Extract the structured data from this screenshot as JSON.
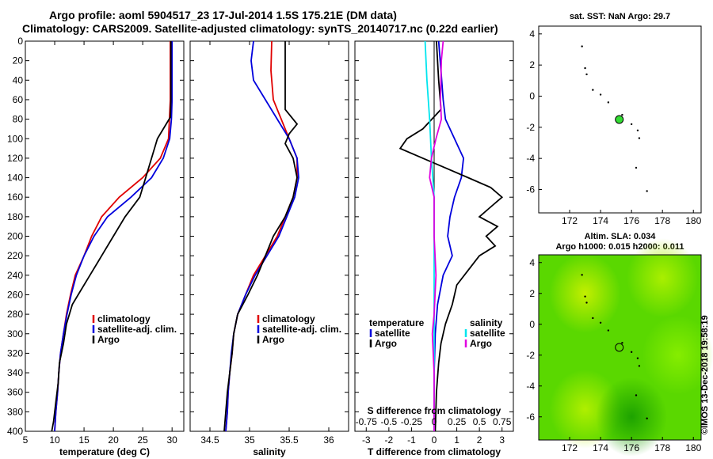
{
  "title_line1": "Argo profile: aoml 5904517_23 17-Jul-2014 1.5S 175.21E (DM data)",
  "title_line2": "Climatology: CARS2009. Satellite-adjusted climatology: synTS_20140717.nc (0.22d earlier)",
  "colors": {
    "red": "#e00000",
    "blue": "#0000dd",
    "black": "#000000",
    "cyan": "#00e5ee",
    "magenta": "#e000e0",
    "green_marker": "#33dd33"
  },
  "chart_data": [
    {
      "type": "line",
      "id": "temperature",
      "xlabel": "temperature (deg C)",
      "ylabel": "",
      "xlim": [
        5,
        32
      ],
      "ylim": [
        400,
        0
      ],
      "xticks": [
        5,
        10,
        15,
        20,
        25,
        30
      ],
      "yticks": [
        0,
        20,
        40,
        60,
        80,
        100,
        120,
        140,
        160,
        180,
        200,
        220,
        240,
        260,
        280,
        300,
        320,
        340,
        360,
        380,
        400
      ],
      "legend": [
        "climatology",
        "satellite-adj. clim.",
        "Argo"
      ],
      "series": [
        {
          "name": "climatology",
          "color": "red",
          "points": [
            [
              29.7,
              0
            ],
            [
              29.7,
              60
            ],
            [
              29.4,
              100
            ],
            [
              28,
              120
            ],
            [
              25,
              140
            ],
            [
              21,
              160
            ],
            [
              18,
              180
            ],
            [
              16.3,
              200
            ],
            [
              15,
              220
            ],
            [
              13.5,
              240
            ],
            [
              12.7,
              260
            ],
            [
              12,
              280
            ],
            [
              11.5,
              300
            ],
            [
              11,
              320
            ],
            [
              10.7,
              340
            ],
            [
              10.5,
              360
            ],
            [
              10.2,
              380
            ],
            [
              10,
              400
            ]
          ]
        },
        {
          "name": "satellite-adj. clim.",
          "color": "blue",
          "points": [
            [
              30,
              0
            ],
            [
              30,
              60
            ],
            [
              29.9,
              80
            ],
            [
              29.6,
              100
            ],
            [
              28.5,
              120
            ],
            [
              26.5,
              140
            ],
            [
              23,
              160
            ],
            [
              19,
              180
            ],
            [
              16.7,
              200
            ],
            [
              15,
              220
            ],
            [
              13.7,
              240
            ],
            [
              12.8,
              260
            ],
            [
              12.1,
              280
            ],
            [
              11.5,
              300
            ],
            [
              11,
              320
            ],
            [
              10.7,
              340
            ],
            [
              10.5,
              360
            ],
            [
              10.2,
              380
            ],
            [
              10,
              400
            ]
          ]
        },
        {
          "name": "Argo",
          "color": "black",
          "points": [
            [
              29.8,
              0
            ],
            [
              29.8,
              60
            ],
            [
              29.7,
              78
            ],
            [
              28.5,
              90
            ],
            [
              27.5,
              100
            ],
            [
              26.5,
              120
            ],
            [
              25.5,
              140
            ],
            [
              24.5,
              160
            ],
            [
              22,
              180
            ],
            [
              20,
              200
            ],
            [
              18,
              220
            ],
            [
              16,
              240
            ],
            [
              14,
              260
            ],
            [
              13,
              270
            ],
            [
              12,
              290
            ],
            [
              11.5,
              310
            ],
            [
              10.8,
              330
            ],
            [
              10.6,
              350
            ],
            [
              10.2,
              370
            ],
            [
              9.8,
              390
            ],
            [
              9.5,
              400
            ]
          ]
        }
      ]
    },
    {
      "type": "line",
      "id": "salinity",
      "xlabel": "salinity",
      "ylabel": "",
      "xlim": [
        34.25,
        36.25
      ],
      "ylim": [
        400,
        0
      ],
      "xticks": [
        34.5,
        35,
        35.5,
        36
      ],
      "legend": [
        "climatology",
        "satellite-adj. clim.",
        "Argo"
      ],
      "series": [
        {
          "name": "climatology",
          "color": "red",
          "points": [
            [
              35.28,
              0
            ],
            [
              35.27,
              30
            ],
            [
              35.3,
              60
            ],
            [
              35.4,
              80
            ],
            [
              35.5,
              100
            ],
            [
              35.6,
              120
            ],
            [
              35.6,
              140
            ],
            [
              35.55,
              160
            ],
            [
              35.45,
              180
            ],
            [
              35.35,
              200
            ],
            [
              35.2,
              220
            ],
            [
              35.05,
              240
            ],
            [
              34.95,
              260
            ],
            [
              34.85,
              280
            ],
            [
              34.8,
              300
            ],
            [
              34.78,
              320
            ],
            [
              34.75,
              340
            ],
            [
              34.73,
              360
            ],
            [
              34.72,
              380
            ],
            [
              34.7,
              400
            ]
          ]
        },
        {
          "name": "satellite-adj. clim.",
          "color": "blue",
          "points": [
            [
              35.05,
              0
            ],
            [
              35.02,
              20
            ],
            [
              35.05,
              40
            ],
            [
              35.2,
              60
            ],
            [
              35.35,
              80
            ],
            [
              35.5,
              100
            ],
            [
              35.6,
              120
            ],
            [
              35.62,
              140
            ],
            [
              35.57,
              160
            ],
            [
              35.47,
              180
            ],
            [
              35.37,
              200
            ],
            [
              35.22,
              220
            ],
            [
              35.07,
              240
            ],
            [
              34.95,
              260
            ],
            [
              34.85,
              280
            ],
            [
              34.8,
              300
            ],
            [
              34.77,
              320
            ],
            [
              34.75,
              340
            ],
            [
              34.73,
              360
            ],
            [
              34.72,
              380
            ],
            [
              34.7,
              400
            ]
          ]
        },
        {
          "name": "Argo",
          "color": "black",
          "points": [
            [
              35.45,
              0
            ],
            [
              35.45,
              40
            ],
            [
              35.45,
              70
            ],
            [
              35.6,
              85
            ],
            [
              35.5,
              95
            ],
            [
              35.45,
              105
            ],
            [
              35.55,
              120
            ],
            [
              35.6,
              140
            ],
            [
              35.55,
              160
            ],
            [
              35.45,
              180
            ],
            [
              35.3,
              200
            ],
            [
              35.2,
              220
            ],
            [
              35.1,
              240
            ],
            [
              34.98,
              260
            ],
            [
              34.85,
              280
            ],
            [
              34.8,
              300
            ],
            [
              34.78,
              320
            ],
            [
              34.75,
              340
            ],
            [
              34.72,
              360
            ],
            [
              34.7,
              380
            ],
            [
              34.68,
              400
            ]
          ]
        }
      ]
    },
    {
      "type": "line",
      "id": "difference",
      "xlabel": "T difference from climatology",
      "xlabel_top": "S difference from climatology",
      "xlim": [
        -3.5,
        3.5
      ],
      "ylim": [
        400,
        0
      ],
      "xticks": [
        -3,
        -2,
        -1,
        0,
        1,
        2,
        3
      ],
      "sticks": [
        -0.75,
        -0.5,
        -0.25,
        0,
        0.25,
        0.5,
        0.75
      ],
      "legend_left_title": "temperature",
      "legend_right_title": "salinity",
      "legend_left": [
        "satellite",
        "Argo"
      ],
      "legend_right": [
        "satellite",
        "Argo"
      ],
      "series": [
        {
          "name": "T satellite",
          "color": "blue",
          "points": [
            [
              0.2,
              0
            ],
            [
              0.3,
              30
            ],
            [
              0.4,
              60
            ],
            [
              0.5,
              80
            ],
            [
              0.9,
              100
            ],
            [
              1.3,
              120
            ],
            [
              1.2,
              140
            ],
            [
              0.9,
              160
            ],
            [
              0.7,
              180
            ],
            [
              0.6,
              200
            ],
            [
              0.8,
              220
            ],
            [
              0.4,
              240
            ],
            [
              0.15,
              270
            ],
            [
              0.05,
              300
            ],
            [
              0,
              340
            ],
            [
              0,
              400
            ]
          ]
        },
        {
          "name": "T Argo",
          "color": "black",
          "points": [
            [
              0.1,
              0
            ],
            [
              0.2,
              40
            ],
            [
              0.3,
              70
            ],
            [
              -0.5,
              90
            ],
            [
              -1.2,
              100
            ],
            [
              -1.5,
              110
            ],
            [
              -0.5,
              120
            ],
            [
              0.5,
              130
            ],
            [
              1.5,
              140
            ],
            [
              2.5,
              150
            ],
            [
              3,
              160
            ],
            [
              2.5,
              170
            ],
            [
              2,
              180
            ],
            [
              2.8,
              190
            ],
            [
              2.3,
              200
            ],
            [
              2.7,
              210
            ],
            [
              2,
              220
            ],
            [
              1.5,
              235
            ],
            [
              1,
              250
            ],
            [
              0.8,
              270
            ],
            [
              0.5,
              290
            ],
            [
              0.3,
              310
            ],
            [
              0.2,
              330
            ],
            [
              0.1,
              360
            ],
            [
              0.05,
              400
            ]
          ]
        },
        {
          "name": "S satellite",
          "color": "cyan",
          "points": [
            [
              -0.1,
              0
            ],
            [
              -0.08,
              40
            ],
            [
              -0.05,
              80
            ],
            [
              -0.03,
              120
            ],
            [
              0,
              160
            ],
            [
              0,
              220
            ],
            [
              0,
              300
            ],
            [
              0,
              400
            ]
          ]
        },
        {
          "name": "S Argo",
          "color": "magenta",
          "points": [
            [
              0.1,
              0
            ],
            [
              0.08,
              20
            ],
            [
              0.07,
              60
            ],
            [
              0.08,
              80
            ],
            [
              0.02,
              100
            ],
            [
              -0.03,
              120
            ],
            [
              -0.05,
              140
            ],
            [
              0,
              160
            ],
            [
              0,
              200
            ],
            [
              0.02,
              240
            ],
            [
              0,
              280
            ],
            [
              -0.02,
              300
            ],
            [
              0,
              340
            ],
            [
              0,
              400
            ]
          ]
        }
      ]
    },
    {
      "type": "scatter",
      "id": "sst_map",
      "title": "sat. SST: NaN Argo: 29.7",
      "xlim": [
        170,
        180.5
      ],
      "ylim": [
        -7.5,
        4.5
      ],
      "xticks": [
        172,
        174,
        176,
        178,
        180
      ],
      "yticks": [
        4,
        2,
        0,
        -2,
        -4,
        -6
      ],
      "argo_position": [
        175.21,
        -1.5
      ],
      "islands": [
        [
          172.8,
          3.2
        ],
        [
          173,
          1.8
        ],
        [
          173.1,
          1.4
        ],
        [
          173.5,
          0.4
        ],
        [
          174,
          0.1
        ],
        [
          174.5,
          -0.4
        ],
        [
          175.4,
          -1.2
        ],
        [
          176,
          -1.8
        ],
        [
          176.4,
          -2.2
        ],
        [
          176.5,
          -2.7
        ],
        [
          177,
          -6.1
        ],
        [
          176.3,
          -4.6
        ]
      ]
    },
    {
      "type": "heatmap",
      "id": "sla_map",
      "title_line1": "Altim. SLA: 0.034",
      "title_line2": "Argo h1000: 0.015 h2000: 0.011",
      "xlim": [
        170,
        180.5
      ],
      "ylim": [
        -7.5,
        4.5
      ],
      "xticks": [
        172,
        174,
        176,
        178,
        180
      ],
      "yticks": [
        4,
        2,
        0,
        -2,
        -4,
        -6
      ],
      "argo_position": [
        175.21,
        -1.5
      ],
      "blobs": [
        [
          173,
          2,
          "#c8f000"
        ],
        [
          178,
          3,
          "#aef000"
        ],
        [
          173,
          -5.5,
          "#b4f000"
        ],
        [
          179,
          -2,
          "#88ee00"
        ],
        [
          176,
          -6,
          "#1aa000"
        ]
      ]
    }
  ],
  "watermark": "©IMOS 13-Dec-2018 19:58:19"
}
